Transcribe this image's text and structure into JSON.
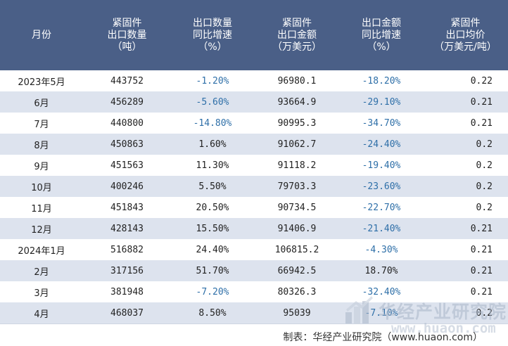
{
  "headers": [
    [
      "月份"
    ],
    [
      "紧固件",
      "出口数量",
      "（吨）"
    ],
    [
      "出口数量",
      "同比增速",
      "（%）"
    ],
    [
      "紧固件",
      "出口金额",
      "（万美元）"
    ],
    [
      "出口金额",
      "同比增速",
      "（%）"
    ],
    [
      "紧固件",
      "出口均价",
      "（万美元/吨）"
    ]
  ],
  "rows": [
    {
      "month": "2023年5月",
      "qty": "443752",
      "qty_yoy": "-1.20%",
      "amount": "96980.1",
      "amount_yoy": "-18.20%",
      "price": "0.22"
    },
    {
      "month": "6月",
      "qty": "456289",
      "qty_yoy": "-5.60%",
      "amount": "93664.9",
      "amount_yoy": "-29.10%",
      "price": "0.21"
    },
    {
      "month": "7月",
      "qty": "440800",
      "qty_yoy": "-14.80%",
      "amount": "90995.3",
      "amount_yoy": "-34.70%",
      "price": "0.21"
    },
    {
      "month": "8月",
      "qty": "450863",
      "qty_yoy": "1.60%",
      "amount": "91062.7",
      "amount_yoy": "-24.40%",
      "price": "0.2"
    },
    {
      "month": "9月",
      "qty": "451563",
      "qty_yoy": "11.30%",
      "amount": "91118.2",
      "amount_yoy": "-19.40%",
      "price": "0.2"
    },
    {
      "month": "10月",
      "qty": "400246",
      "qty_yoy": "5.50%",
      "amount": "79703.3",
      "amount_yoy": "-23.60%",
      "price": "0.2"
    },
    {
      "month": "11月",
      "qty": "451843",
      "qty_yoy": "20.50%",
      "amount": "90734.5",
      "amount_yoy": "-22.70%",
      "price": "0.2"
    },
    {
      "month": "12月",
      "qty": "428143",
      "qty_yoy": "15.50%",
      "amount": "91406.9",
      "amount_yoy": "-21.40%",
      "price": "0.21"
    },
    {
      "month": "2024年1月",
      "qty": "516882",
      "qty_yoy": "24.40%",
      "amount": "106815.2",
      "amount_yoy": "-4.30%",
      "price": "0.21"
    },
    {
      "month": "2月",
      "qty": "317156",
      "qty_yoy": "51.70%",
      "amount": "66942.5",
      "amount_yoy": "18.70%",
      "price": "0.21"
    },
    {
      "month": "3月",
      "qty": "381948",
      "qty_yoy": "-7.20%",
      "amount": "80326.3",
      "amount_yoy": "-32.40%",
      "price": "0.21"
    },
    {
      "month": "4月",
      "qty": "468037",
      "qty_yoy": "8.50%",
      "amount": "95039",
      "amount_yoy": "-7.10%",
      "price": "0.2"
    }
  ],
  "source": "制表：华经产业研究院（www.huaon.com）",
  "watermark": {
    "name": "华经产业研究院",
    "url": "www.huaon.com",
    "icon": "bar-chart-logo-icon"
  },
  "colors": {
    "header_bg": "#4a5f87",
    "stripe_bg": "#dde3ee",
    "negative_text": "#2e6fa8"
  }
}
